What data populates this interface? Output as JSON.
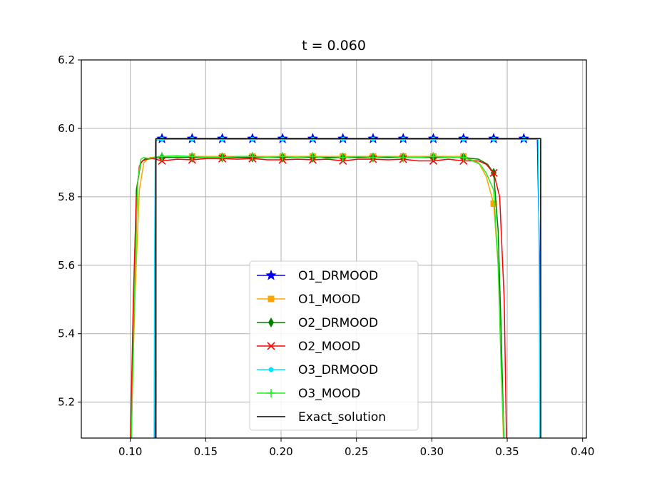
{
  "chart_data": {
    "type": "line",
    "title": "t = 0.060",
    "xlabel": "",
    "ylabel": "",
    "xlim": [
      0.0675,
      0.4025
    ],
    "ylim": [
      5.095,
      6.2
    ],
    "x_ticks": [
      0.1,
      0.15,
      0.2,
      0.25,
      0.3,
      0.35,
      0.4
    ],
    "x_tick_labels": [
      "0.10",
      "0.15",
      "0.20",
      "0.25",
      "0.30",
      "0.35",
      "0.40"
    ],
    "y_ticks": [
      5.2,
      5.4,
      5.6,
      5.8,
      6.0,
      6.2
    ],
    "y_tick_labels": [
      "5.2",
      "5.4",
      "5.6",
      "5.8",
      "6.0",
      "6.2"
    ],
    "grid": true,
    "legend_position": "lower-center",
    "series": [
      {
        "name": "O1_DRMOOD",
        "color": "#0000ff",
        "marker": "star",
        "x": [
          0.1161,
          0.1163,
          0.117,
          0.121,
          0.141,
          0.161,
          0.181,
          0.201,
          0.221,
          0.241,
          0.261,
          0.281,
          0.301,
          0.321,
          0.341,
          0.361,
          0.37,
          0.3715,
          0.3717
        ],
        "y": [
          5.09,
          5.6,
          5.97,
          5.97,
          5.97,
          5.97,
          5.97,
          5.97,
          5.97,
          5.97,
          5.97,
          5.97,
          5.97,
          5.97,
          5.97,
          5.97,
          5.97,
          5.6,
          5.09
        ],
        "marker_indices": [
          3,
          4,
          5,
          6,
          7,
          8,
          9,
          10,
          11,
          12,
          13,
          14,
          15
        ]
      },
      {
        "name": "O1_MOOD",
        "color": "#ffa500",
        "marker": "square",
        "x": [
          0.1005,
          0.103,
          0.106,
          0.109,
          0.113,
          0.121,
          0.141,
          0.161,
          0.181,
          0.201,
          0.221,
          0.241,
          0.261,
          0.281,
          0.301,
          0.321,
          0.331,
          0.336,
          0.341,
          0.344,
          0.346,
          0.3475
        ],
        "y": [
          5.09,
          5.5,
          5.82,
          5.9,
          5.915,
          5.918,
          5.918,
          5.918,
          5.918,
          5.918,
          5.918,
          5.918,
          5.918,
          5.918,
          5.918,
          5.918,
          5.9,
          5.86,
          5.78,
          5.6,
          5.3,
          5.09
        ],
        "marker_indices": [
          6,
          7,
          8,
          9,
          10,
          11,
          12,
          13,
          14,
          15,
          18
        ]
      },
      {
        "name": "O2_DRMOOD",
        "color": "#008000",
        "marker": "diamond",
        "x": [
          0.1003,
          0.102,
          0.104,
          0.107,
          0.11,
          0.115,
          0.121,
          0.141,
          0.161,
          0.181,
          0.201,
          0.221,
          0.241,
          0.261,
          0.281,
          0.301,
          0.321,
          0.331,
          0.337,
          0.341,
          0.344,
          0.346,
          0.3478
        ],
        "y": [
          5.09,
          5.45,
          5.82,
          5.9,
          5.912,
          5.913,
          5.915,
          5.915,
          5.915,
          5.915,
          5.915,
          5.915,
          5.915,
          5.915,
          5.915,
          5.915,
          5.915,
          5.91,
          5.895,
          5.87,
          5.7,
          5.4,
          5.09
        ],
        "marker_indices": [
          6,
          7,
          8,
          9,
          10,
          11,
          12,
          13,
          14,
          15,
          16,
          19
        ]
      },
      {
        "name": "O2_MOOD",
        "color": "#ff0000",
        "marker": "x",
        "x": [
          0.1001,
          0.102,
          0.104,
          0.106,
          0.108,
          0.111,
          0.115,
          0.121,
          0.131,
          0.141,
          0.151,
          0.161,
          0.171,
          0.181,
          0.191,
          0.201,
          0.211,
          0.221,
          0.231,
          0.241,
          0.251,
          0.261,
          0.271,
          0.281,
          0.291,
          0.301,
          0.311,
          0.321,
          0.331,
          0.336,
          0.341,
          0.345,
          0.348,
          0.3495
        ],
        "y": [
          5.09,
          5.5,
          5.8,
          5.89,
          5.905,
          5.91,
          5.912,
          5.905,
          5.91,
          5.908,
          5.912,
          5.912,
          5.91,
          5.912,
          5.908,
          5.908,
          5.91,
          5.908,
          5.91,
          5.905,
          5.91,
          5.91,
          5.908,
          5.91,
          5.905,
          5.905,
          5.91,
          5.905,
          5.905,
          5.895,
          5.87,
          5.8,
          5.5,
          5.09
        ],
        "marker_indices": [
          7,
          9,
          11,
          13,
          15,
          17,
          19,
          21,
          23,
          25,
          27,
          30
        ]
      },
      {
        "name": "O3_DRMOOD",
        "color": "#00e5ff",
        "marker": "dot",
        "x": [
          0.1158,
          0.1161,
          0.1166,
          0.121,
          0.141,
          0.161,
          0.181,
          0.201,
          0.221,
          0.241,
          0.261,
          0.281,
          0.301,
          0.321,
          0.341,
          0.361,
          0.3705,
          0.3712,
          0.3716
        ],
        "y": [
          5.09,
          5.6,
          5.965,
          5.968,
          5.968,
          5.968,
          5.968,
          5.968,
          5.968,
          5.968,
          5.968,
          5.968,
          5.968,
          5.968,
          5.968,
          5.968,
          5.968,
          5.6,
          5.09
        ],
        "marker_indices": [
          3,
          4,
          5,
          6,
          7,
          8,
          9,
          10,
          11,
          12,
          13,
          14,
          15
        ]
      },
      {
        "name": "O3_MOOD",
        "color": "#22ee22",
        "marker": "plus",
        "x": [
          0.1007,
          0.103,
          0.105,
          0.107,
          0.109,
          0.112,
          0.116,
          0.121,
          0.131,
          0.141,
          0.151,
          0.161,
          0.171,
          0.181,
          0.191,
          0.201,
          0.211,
          0.221,
          0.231,
          0.241,
          0.251,
          0.261,
          0.271,
          0.281,
          0.291,
          0.301,
          0.311,
          0.321,
          0.327,
          0.332,
          0.336,
          0.341,
          0.344,
          0.346,
          0.3478
        ],
        "y": [
          5.09,
          5.55,
          5.85,
          5.91,
          5.915,
          5.912,
          5.915,
          5.918,
          5.92,
          5.918,
          5.915,
          5.915,
          5.918,
          5.918,
          5.915,
          5.918,
          5.915,
          5.918,
          5.912,
          5.915,
          5.918,
          5.915,
          5.918,
          5.915,
          5.915,
          5.918,
          5.915,
          5.915,
          5.905,
          5.895,
          5.87,
          5.82,
          5.6,
          5.3,
          5.09
        ],
        "marker_indices": [
          7,
          9,
          11,
          13,
          15,
          17,
          19,
          21,
          23,
          25,
          27
        ]
      },
      {
        "name": "Exact_solution",
        "color": "#000000",
        "marker": "none",
        "x": [
          0.117,
          0.117,
          0.3722,
          0.3722
        ],
        "y": [
          5.09,
          5.97,
          5.97,
          5.09
        ],
        "marker_indices": []
      }
    ]
  }
}
